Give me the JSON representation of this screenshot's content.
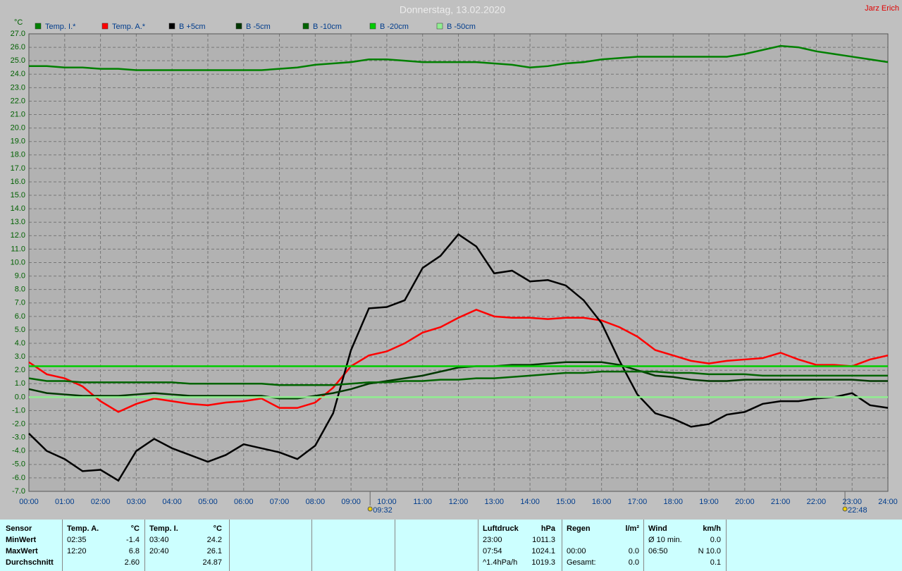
{
  "chart_data": {
    "type": "line",
    "title": "Donnerstag, 13.02.2020",
    "author": "Jarz Erich",
    "y_unit": "°C",
    "xlim": [
      0,
      24
    ],
    "ylim": [
      -7,
      27
    ],
    "grid": true,
    "xticks": [
      {
        "value": 0,
        "label": "00:00"
      },
      {
        "value": 1,
        "label": "01:00"
      },
      {
        "value": 2,
        "label": "02:00"
      },
      {
        "value": 3,
        "label": "03:00"
      },
      {
        "value": 4,
        "label": "04:00"
      },
      {
        "value": 5,
        "label": "05:00"
      },
      {
        "value": 6,
        "label": "06:00"
      },
      {
        "value": 7,
        "label": "07:00"
      },
      {
        "value": 8,
        "label": "08:00"
      },
      {
        "value": 9,
        "label": "09:00"
      },
      {
        "value": 10,
        "label": "10:00"
      },
      {
        "value": 11,
        "label": "11:00"
      },
      {
        "value": 12,
        "label": "12:00"
      },
      {
        "value": 13,
        "label": "13:00"
      },
      {
        "value": 14,
        "label": "14:00"
      },
      {
        "value": 15,
        "label": "15:00"
      },
      {
        "value": 16,
        "label": "16:00"
      },
      {
        "value": 17,
        "label": "17:00"
      },
      {
        "value": 18,
        "label": "18:00"
      },
      {
        "value": 19,
        "label": "19:00"
      },
      {
        "value": 20,
        "label": "20:00"
      },
      {
        "value": 21,
        "label": "21:00"
      },
      {
        "value": 22,
        "label": "22:00"
      },
      {
        "value": 23,
        "label": "23:00"
      },
      {
        "value": 24,
        "label": "24:00"
      }
    ],
    "yticks": [
      {
        "value": 27,
        "label": "27.0"
      },
      {
        "value": 26,
        "label": "26.0"
      },
      {
        "value": 25,
        "label": "25.0"
      },
      {
        "value": 24,
        "label": "24.0"
      },
      {
        "value": 23,
        "label": "23.0"
      },
      {
        "value": 22,
        "label": "22.0"
      },
      {
        "value": 21,
        "label": "21.0"
      },
      {
        "value": 20,
        "label": "20.0"
      },
      {
        "value": 19,
        "label": "19.0"
      },
      {
        "value": 18,
        "label": "18.0"
      },
      {
        "value": 17,
        "label": "17.0"
      },
      {
        "value": 16,
        "label": "16.0"
      },
      {
        "value": 15,
        "label": "15.0"
      },
      {
        "value": 14,
        "label": "14.0"
      },
      {
        "value": 13,
        "label": "13.0"
      },
      {
        "value": 12,
        "label": "12.0"
      },
      {
        "value": 11,
        "label": "11.0"
      },
      {
        "value": 10,
        "label": "10.0"
      },
      {
        "value": 9,
        "label": "9.0"
      },
      {
        "value": 8,
        "label": "8.0"
      },
      {
        "value": 7,
        "label": "7.0"
      },
      {
        "value": 6,
        "label": "6.0"
      },
      {
        "value": 5,
        "label": "5.0"
      },
      {
        "value": 4,
        "label": "4.0"
      },
      {
        "value": 3,
        "label": "3.0"
      },
      {
        "value": 2,
        "label": "2.0"
      },
      {
        "value": 1,
        "label": "1.0"
      },
      {
        "value": 0,
        "label": "0.0"
      },
      {
        "value": -1,
        "label": "-1.0"
      },
      {
        "value": -2,
        "label": "-2.0"
      },
      {
        "value": -3,
        "label": "-3.0"
      },
      {
        "value": -4,
        "label": "-4.0"
      },
      {
        "value": -5,
        "label": "-5.0"
      },
      {
        "value": -6,
        "label": "-6.0"
      },
      {
        "value": -7,
        "label": "-7.0"
      }
    ],
    "markers": [
      {
        "x": 9.533,
        "label": "09:32"
      },
      {
        "x": 22.8,
        "label": "22:48"
      }
    ],
    "x": [
      0,
      0.5,
      1,
      1.5,
      2,
      2.5,
      3,
      3.5,
      4,
      4.5,
      5,
      5.5,
      6,
      6.5,
      7,
      7.5,
      8,
      8.5,
      9,
      9.5,
      10,
      10.5,
      11,
      11.5,
      12,
      12.5,
      13,
      13.5,
      14,
      14.5,
      15,
      15.5,
      16,
      16.5,
      17,
      17.5,
      18,
      18.5,
      19,
      19.5,
      20,
      20.5,
      21,
      21.5,
      22,
      22.5,
      23,
      23.5,
      24
    ],
    "series": [
      {
        "name": "Temp. I.*",
        "color": "#008000",
        "values": [
          24.6,
          24.6,
          24.5,
          24.5,
          24.4,
          24.4,
          24.3,
          24.3,
          24.3,
          24.3,
          24.3,
          24.3,
          24.3,
          24.3,
          24.4,
          24.5,
          24.7,
          24.8,
          24.9,
          25.1,
          25.1,
          25.0,
          24.9,
          24.9,
          24.9,
          24.9,
          24.8,
          24.7,
          24.5,
          24.6,
          24.8,
          24.9,
          25.1,
          25.2,
          25.3,
          25.3,
          25.3,
          25.3,
          25.3,
          25.3,
          25.5,
          25.8,
          26.1,
          26.0,
          25.7,
          25.5,
          25.3,
          25.1,
          24.9
        ]
      },
      {
        "name": "Temp. A.*",
        "color": "#ff0000",
        "values": [
          2.6,
          1.7,
          1.4,
          0.8,
          -0.3,
          -1.1,
          -0.5,
          -0.1,
          -0.3,
          -0.5,
          -0.6,
          -0.4,
          -0.3,
          -0.1,
          -0.8,
          -0.8,
          -0.4,
          0.7,
          2.3,
          3.1,
          3.4,
          4.0,
          4.8,
          5.2,
          5.9,
          6.5,
          6.0,
          5.9,
          5.9,
          5.8,
          5.9,
          5.9,
          5.7,
          5.2,
          4.5,
          3.5,
          3.1,
          2.7,
          2.5,
          2.7,
          2.8,
          2.9,
          3.3,
          2.8,
          2.4,
          2.4,
          2.3,
          2.8,
          3.1
        ]
      },
      {
        "name": "B +5cm",
        "color": "#000000",
        "values": [
          -2.7,
          -4.0,
          -4.6,
          -5.5,
          -5.4,
          -6.2,
          -4.0,
          -3.1,
          -3.8,
          -4.3,
          -4.8,
          -4.3,
          -3.5,
          -3.8,
          -4.1,
          -4.6,
          -3.6,
          -1.2,
          3.5,
          6.6,
          6.7,
          7.2,
          9.6,
          10.5,
          12.1,
          11.2,
          9.2,
          9.4,
          8.6,
          8.7,
          8.3,
          7.2,
          5.5,
          2.7,
          0.2,
          -1.2,
          -1.6,
          -2.2,
          -2.0,
          -1.3,
          -1.1,
          -0.5,
          -0.3,
          -0.3,
          -0.1,
          0.0,
          0.3,
          -0.6,
          -0.8
        ]
      },
      {
        "name": "B -5cm",
        "color": "#003800",
        "values": [
          0.6,
          0.3,
          0.2,
          0.1,
          0.1,
          0.1,
          0.2,
          0.3,
          0.2,
          0.1,
          0.1,
          0.1,
          0.1,
          0.1,
          -0.1,
          -0.1,
          0.1,
          0.3,
          0.6,
          1.0,
          1.2,
          1.4,
          1.6,
          1.9,
          2.2,
          2.3,
          2.3,
          2.4,
          2.4,
          2.5,
          2.6,
          2.6,
          2.6,
          2.4,
          2.0,
          1.6,
          1.5,
          1.3,
          1.2,
          1.2,
          1.3,
          1.3,
          1.3,
          1.3,
          1.3,
          1.3,
          1.3,
          1.2,
          1.2
        ]
      },
      {
        "name": "B -10cm",
        "color": "#006400",
        "values": [
          1.4,
          1.2,
          1.2,
          1.1,
          1.1,
          1.1,
          1.1,
          1.1,
          1.1,
          1.0,
          1.0,
          1.0,
          1.0,
          1.0,
          0.9,
          0.9,
          0.9,
          0.9,
          1.0,
          1.1,
          1.1,
          1.2,
          1.2,
          1.3,
          1.3,
          1.4,
          1.4,
          1.5,
          1.6,
          1.7,
          1.8,
          1.8,
          1.9,
          1.9,
          1.9,
          1.9,
          1.8,
          1.8,
          1.7,
          1.7,
          1.7,
          1.6,
          1.6,
          1.6,
          1.6,
          1.6,
          1.6,
          1.6,
          1.6
        ]
      },
      {
        "name": "B -20cm",
        "color": "#00cc00",
        "values": [
          2.3,
          2.3,
          2.3,
          2.3,
          2.3,
          2.3,
          2.3,
          2.3,
          2.3,
          2.3,
          2.3,
          2.3,
          2.3,
          2.3,
          2.3,
          2.3,
          2.3,
          2.3,
          2.3,
          2.3,
          2.3,
          2.3,
          2.3,
          2.3,
          2.3,
          2.3,
          2.3,
          2.3,
          2.3,
          2.3,
          2.3,
          2.3,
          2.3,
          2.3,
          2.3,
          2.3,
          2.3,
          2.3,
          2.3,
          2.3,
          2.3,
          2.3,
          2.3,
          2.3,
          2.3,
          2.3,
          2.3,
          2.3,
          2.3
        ]
      },
      {
        "name": "B -50cm",
        "color": "#90ee90",
        "values": [
          0,
          0,
          0,
          0,
          0,
          0,
          0,
          0,
          0,
          0,
          0,
          0,
          0,
          0,
          0,
          0,
          0,
          0,
          0,
          0,
          0,
          0,
          0,
          0,
          0,
          0,
          0,
          0,
          0,
          0,
          0,
          0,
          0,
          0,
          0,
          0,
          0,
          0,
          0,
          0,
          0,
          0,
          0,
          0,
          0,
          0,
          0,
          0,
          0
        ]
      }
    ]
  },
  "table": {
    "row_labels": [
      "Sensor",
      "MinWert",
      "MaxWert",
      "Durchschnitt"
    ],
    "panels": [
      {
        "title": "Temp. A.",
        "unit": "°C",
        "rows": [
          [
            "02:35",
            "-1.4"
          ],
          [
            "12:20",
            "6.8"
          ],
          [
            null,
            "2.60"
          ]
        ]
      },
      {
        "title": "Temp. I.",
        "unit": "°C",
        "rows": [
          [
            "03:40",
            "24.2"
          ],
          [
            "20:40",
            "26.1"
          ],
          [
            null,
            "24.87"
          ]
        ]
      },
      {
        "title": "Luftdruck",
        "unit": "hPa",
        "rows": [
          [
            "23:00",
            "1011.3"
          ],
          [
            "07:54",
            "1024.1"
          ],
          [
            "^1.4hPa/h",
            "1019.3"
          ]
        ]
      },
      {
        "title": "Regen",
        "unit": "l/m²",
        "rows": [
          [
            null,
            null
          ],
          [
            "00:00",
            "0.0"
          ],
          [
            "Gesamt:",
            "0.0"
          ]
        ]
      },
      {
        "title": "Wind",
        "unit": "km/h",
        "rows": [
          [
            "Ø 10 min.",
            "0.0"
          ],
          [
            "06:50",
            "N 10.0"
          ],
          [
            null,
            "0.1"
          ]
        ]
      }
    ]
  }
}
